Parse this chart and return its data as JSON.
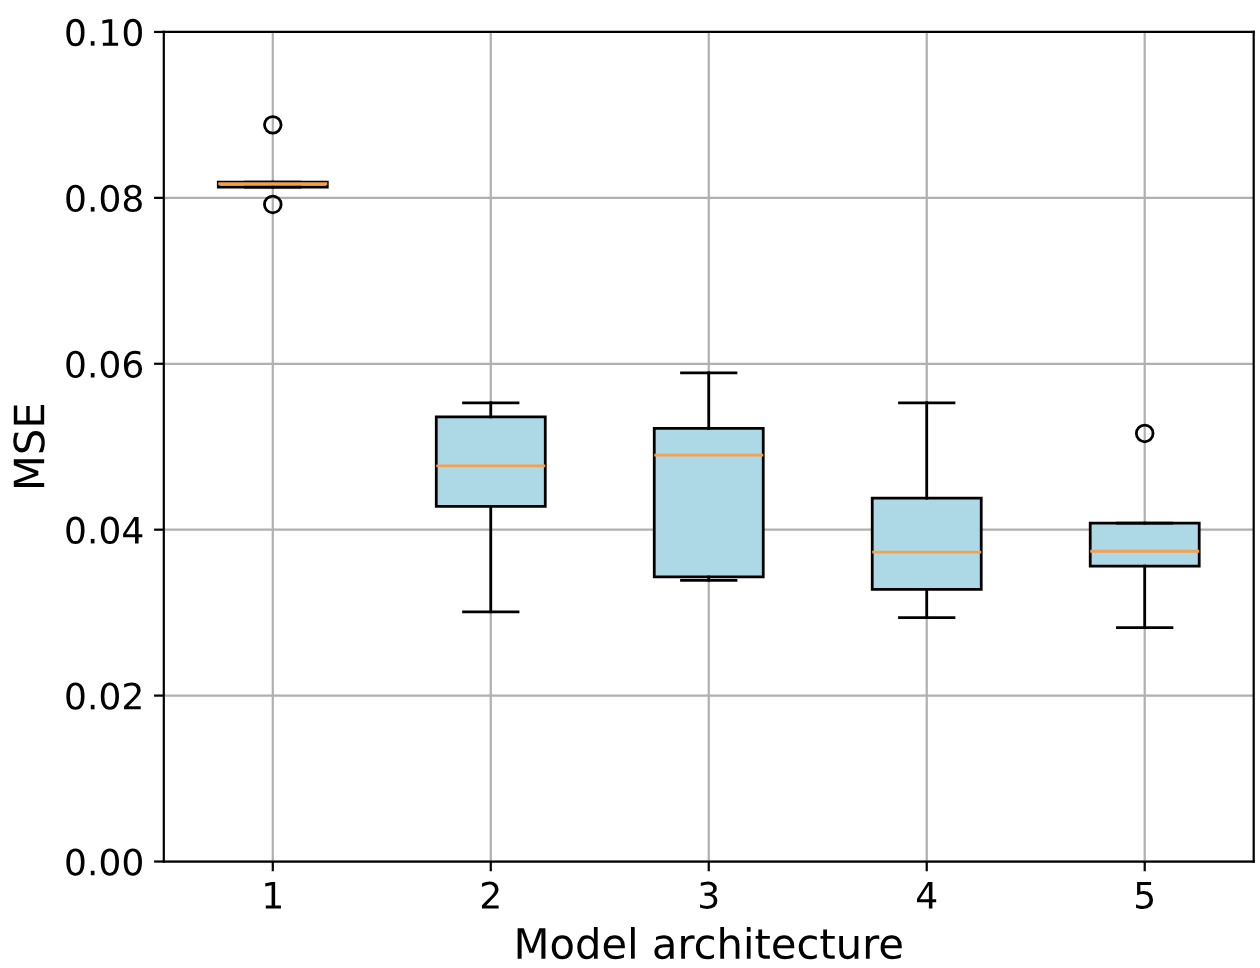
{
  "chart_data": {
    "type": "box",
    "xlabel": "Model architecture",
    "ylabel": "MSE",
    "categories": [
      "1",
      "2",
      "3",
      "4",
      "5"
    ],
    "boxes": [
      {
        "low": 0.0813,
        "q1": 0.0813,
        "median": 0.0817,
        "q3": 0.0819,
        "high": 0.0819,
        "outliers": [
          0.0888,
          0.0792
        ]
      },
      {
        "low": 0.0301,
        "q1": 0.0428,
        "median": 0.0477,
        "q3": 0.0536,
        "high": 0.0553
      },
      {
        "low": 0.0339,
        "q1": 0.0343,
        "median": 0.049,
        "q3": 0.0522,
        "high": 0.0589
      },
      {
        "low": 0.0294,
        "q1": 0.0328,
        "median": 0.0373,
        "q3": 0.0438,
        "high": 0.0553
      },
      {
        "low": 0.0282,
        "q1": 0.0356,
        "median": 0.0374,
        "q3": 0.0408,
        "high": 0.0408,
        "outliers": [
          0.0516
        ]
      }
    ],
    "color": "#add8e6",
    "ylim": [
      0,
      0.1
    ],
    "yticks": [
      {
        "value": 0,
        "label": "0.00"
      },
      {
        "value": 0.02,
        "label": "0.02"
      },
      {
        "value": 0.04,
        "label": "0.04"
      },
      {
        "value": 0.06,
        "label": "0.06"
      },
      {
        "value": 0.08,
        "label": "0.08"
      },
      {
        "value": 0.1,
        "label": "0.10"
      }
    ],
    "grid": true
  }
}
